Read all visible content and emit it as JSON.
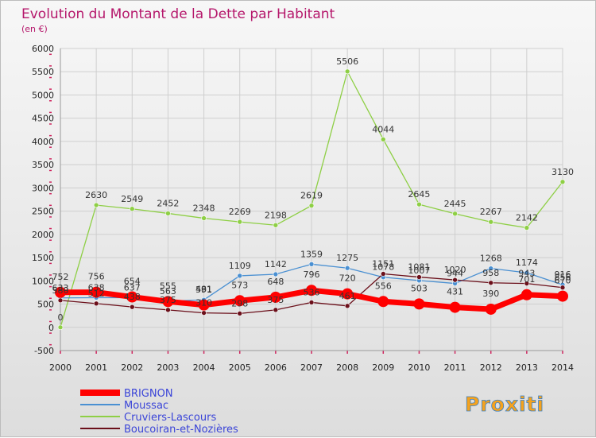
{
  "header": {
    "title": "Evolution du Montant de la Dette par Habitant",
    "subtitle": "(en €)"
  },
  "logo": {
    "text": "Proxiti"
  },
  "colors": {
    "title": "#b5176b",
    "legend_text": "#3b45d8",
    "grid": "#cfcfcf",
    "axis_marks": "#d0245e"
  },
  "chart_data": {
    "type": "line",
    "title": "Evolution du Montant de la Dette par Habitant",
    "subtitle": "(en €)",
    "xlabel": "",
    "ylabel": "",
    "x": [
      "2000",
      "2001",
      "2002",
      "2003",
      "2004",
      "2005",
      "2006",
      "2007",
      "2008",
      "2009",
      "2010",
      "2011",
      "2012",
      "2013",
      "2014"
    ],
    "ylim": [
      -500,
      6000
    ],
    "yticks": [
      -500,
      0,
      500,
      1000,
      1500,
      2000,
      2500,
      3000,
      3500,
      4000,
      4500,
      5000,
      5500,
      6000
    ],
    "grid": true,
    "legend_position": "bottom-left",
    "series": [
      {
        "name": "BRIGNON",
        "color": "#ff0000",
        "values": [
          752,
          756,
          654,
          555,
          481,
          573,
          648,
          796,
          720,
          556,
          503,
          431,
          390,
          701,
          670
        ]
      },
      {
        "name": "Moussac",
        "color": "#4a90d2",
        "values": [
          633,
          638,
          637,
          563,
          591,
          1109,
          1142,
          1359,
          1275,
          1078,
          1007,
          944,
          1268,
          1174,
          916
        ]
      },
      {
        "name": "Cruviers-Lascours",
        "color": "#8ecf45",
        "values": [
          0,
          2630,
          2549,
          2452,
          2348,
          2269,
          2198,
          2619,
          5506,
          4044,
          2645,
          2445,
          2267,
          2142,
          3130
        ]
      },
      {
        "name": "Boucoiran-et-Nozières",
        "color": "#6b0f1a",
        "values": [
          580,
          512,
          438,
          375,
          310,
          298,
          375,
          536,
          461,
          1151,
          1081,
          1020,
          958,
          943,
          856
        ]
      }
    ]
  }
}
